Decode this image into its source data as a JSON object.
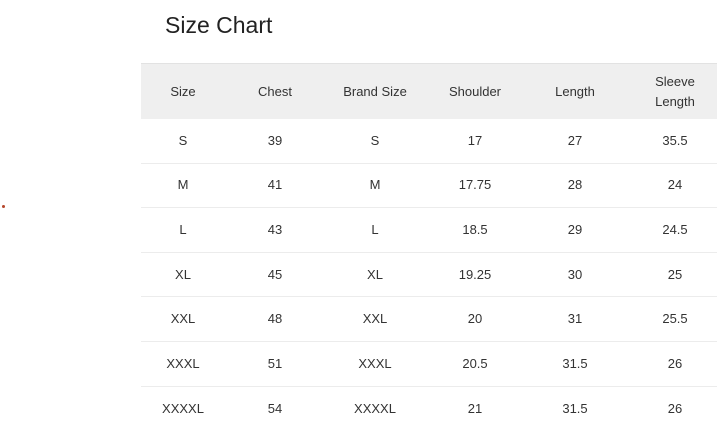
{
  "title": "Size Chart",
  "table": {
    "headers": [
      "Size",
      "Chest",
      "Brand Size",
      "Shoulder",
      "Length",
      "Sleeve Length"
    ],
    "rows": [
      [
        "S",
        "39",
        "S",
        "17",
        "27",
        "35.5"
      ],
      [
        "M",
        "41",
        "M",
        "17.75",
        "28",
        "24"
      ],
      [
        "L",
        "43",
        "L",
        "18.5",
        "29",
        "24.5"
      ],
      [
        "XL",
        "45",
        "XL",
        "19.25",
        "30",
        "25"
      ],
      [
        "XXL",
        "48",
        "XXL",
        "20",
        "31",
        "25.5"
      ],
      [
        "XXXL",
        "51",
        "XXXL",
        "20.5",
        "31.5",
        "26"
      ],
      [
        "XXXXL",
        "54",
        "XXXXL",
        "21",
        "31.5",
        "26"
      ]
    ]
  }
}
